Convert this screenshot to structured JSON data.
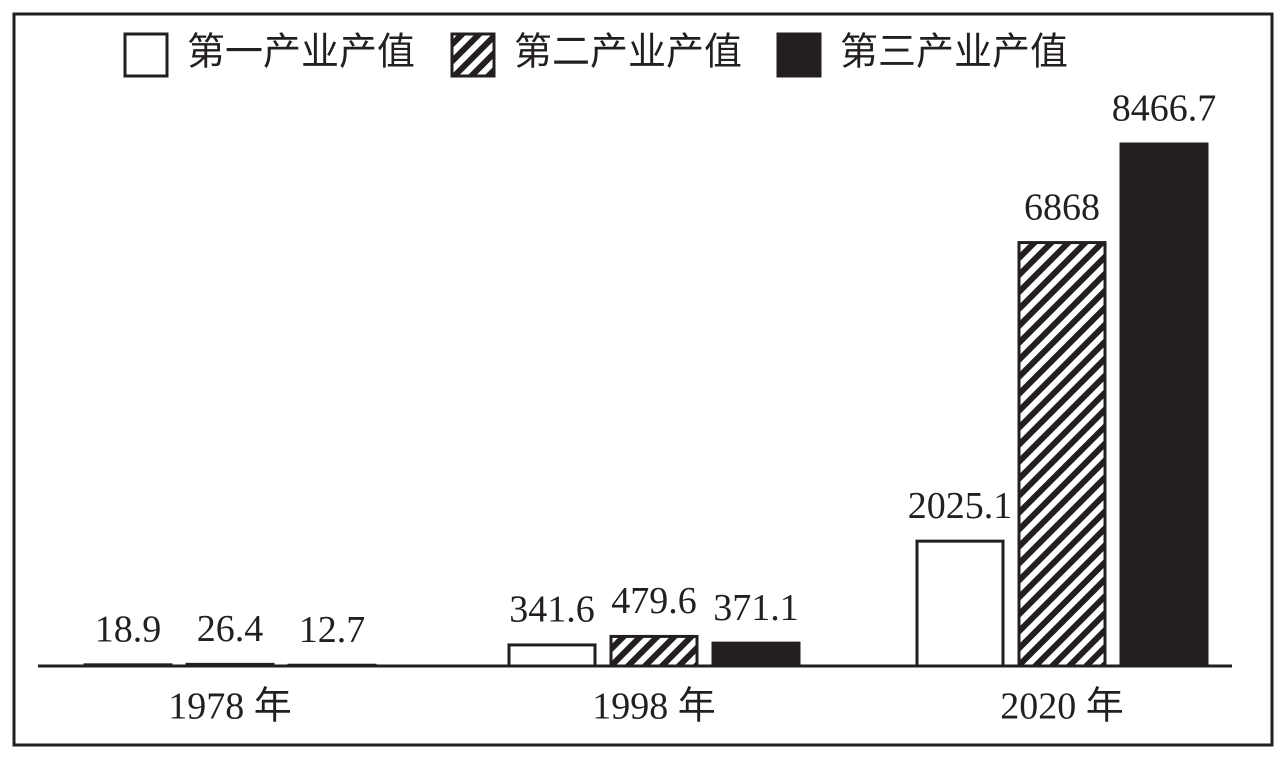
{
  "chart_data": {
    "type": "bar",
    "categories": [
      "1978 年",
      "1998 年",
      "2020 年"
    ],
    "series": [
      {
        "name": "第一产业产值",
        "color": "#ffffff",
        "values": [
          18.9,
          341.6,
          2025.1
        ]
      },
      {
        "name": "第二产业产值",
        "color": "#ffffff",
        "pattern": "hatch",
        "values": [
          26.4,
          479.6,
          6868
        ]
      },
      {
        "name": "第三产业产值",
        "color": "#231f20",
        "values": [
          12.7,
          371.1,
          8466.7
        ]
      }
    ]
  }
}
